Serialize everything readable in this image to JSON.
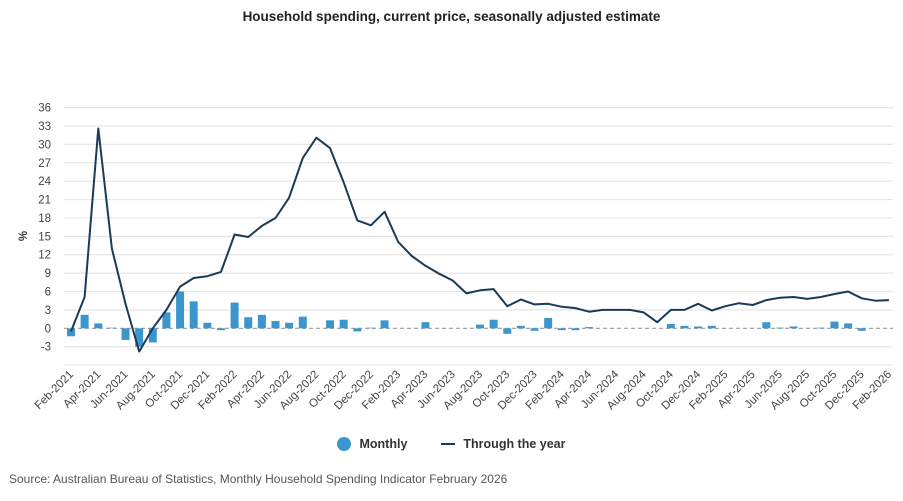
{
  "chart_data": {
    "type": "bar+line",
    "title": "Household spending, current price, seasonally adjusted estimate",
    "xlabel": "",
    "ylabel": "%",
    "ylim": [
      -6,
      36
    ],
    "yticks": [
      -3,
      0,
      3,
      6,
      9,
      12,
      15,
      18,
      21,
      24,
      27,
      30,
      33,
      36
    ],
    "grid": true,
    "legend_position": "bottom",
    "x": [
      "Feb-2021",
      "Mar-2021",
      "Apr-2021",
      "May-2021",
      "Jun-2021",
      "Jul-2021",
      "Aug-2021",
      "Sep-2021",
      "Oct-2021",
      "Nov-2021",
      "Dec-2021",
      "Jan-2022",
      "Feb-2022",
      "Mar-2022",
      "Apr-2022",
      "May-2022",
      "Jun-2022",
      "Jul-2022",
      "Aug-2022",
      "Sep-2022",
      "Oct-2022",
      "Nov-2022",
      "Dec-2022",
      "Jan-2023",
      "Feb-2023",
      "Mar-2023",
      "Apr-2023",
      "May-2023",
      "Jun-2023",
      "Jul-2023",
      "Aug-2023",
      "Sep-2023",
      "Oct-2023",
      "Nov-2023",
      "Dec-2023",
      "Jan-2024",
      "Feb-2024",
      "Mar-2024",
      "Apr-2024",
      "May-2024",
      "Jun-2024",
      "Jul-2024",
      "Aug-2024",
      "Sep-2024",
      "Oct-2024",
      "Nov-2024",
      "Dec-2024",
      "Jan-2025",
      "Feb-2025",
      "Mar-2025",
      "Apr-2025",
      "May-2025",
      "Jun-2025",
      "Jul-2025",
      "Aug-2025",
      "Sep-2025",
      "Oct-2025",
      "Nov-2025",
      "Dec-2025",
      "Jan-2026",
      "Feb-2026"
    ],
    "xtick_labels": [
      "Feb-2021",
      "Apr-2021",
      "Jun-2021",
      "Aug-2021",
      "Oct-2021",
      "Dec-2021",
      "Feb-2022",
      "Apr-2022",
      "Jun-2022",
      "Aug-2022",
      "Oct-2022",
      "Dec-2022",
      "Feb-2023",
      "Apr-2023",
      "Jun-2023",
      "Aug-2023",
      "Oct-2023",
      "Dec-2023",
      "Feb-2024",
      "Apr-2024",
      "Jun-2024",
      "Aug-2024",
      "Oct-2024",
      "Dec-2024",
      "Feb-2025",
      "Apr-2025",
      "Jun-2025",
      "Aug-2025",
      "Oct-2025",
      "Dec-2025",
      "Feb-2026"
    ],
    "series": [
      {
        "name": "Monthly",
        "type": "bar",
        "color": "#3b96cd",
        "values": [
          -1.3,
          2.2,
          0.8,
          0.1,
          -1.9,
          -3.0,
          -2.3,
          2.6,
          6.0,
          4.4,
          0.9,
          -0.3,
          4.2,
          1.8,
          2.2,
          1.2,
          0.9,
          1.9,
          0.0,
          1.3,
          1.4,
          -0.5,
          0.1,
          1.3,
          0.0,
          0.0,
          1.0,
          0.0,
          0.0,
          0.0,
          0.6,
          1.4,
          -0.9,
          0.4,
          -0.4,
          1.7,
          -0.3,
          -0.3,
          0.2,
          0.0,
          0.0,
          0.0,
          0.0,
          0.0,
          0.7,
          0.4,
          0.3,
          0.4,
          0.0,
          0.0,
          0.0,
          1.0,
          0.1,
          0.3,
          0.0,
          0.1,
          1.1,
          0.8,
          -0.4,
          0.0,
          0.0
        ]
      },
      {
        "name": "Through the year",
        "type": "line",
        "color": "#1b3a55",
        "values": [
          -0.5,
          5.1,
          32.6,
          13.0,
          4.0,
          -3.8,
          0.0,
          3.0,
          6.8,
          8.2,
          8.5,
          9.2,
          15.3,
          14.9,
          16.7,
          18.0,
          21.3,
          27.8,
          31.1,
          29.4,
          23.8,
          17.6,
          16.8,
          19.0,
          14.1,
          11.8,
          10.2,
          8.9,
          7.8,
          5.7,
          6.2,
          6.4,
          3.6,
          4.7,
          3.9,
          4.0,
          3.5,
          3.3,
          2.7,
          3.0,
          3.0,
          3.0,
          2.6,
          1.0,
          3.0,
          3.0,
          4.0,
          2.9,
          3.6,
          4.1,
          3.8,
          4.6,
          5.0,
          5.1,
          4.8,
          5.1,
          5.6,
          6.0,
          4.9,
          4.5,
          4.6
        ]
      }
    ]
  },
  "legend": {
    "monthly_label": "Monthly",
    "through_year_label": "Through the year"
  },
  "source": "Source: Australian Bureau of Statistics, Monthly Household Spending Indicator February 2026"
}
